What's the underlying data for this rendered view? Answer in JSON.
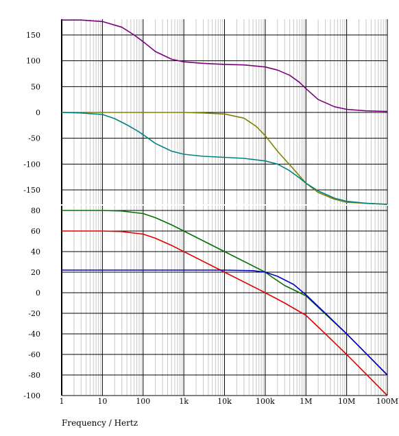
{
  "chart_data": [
    {
      "type": "line",
      "title": "",
      "xscale": "log",
      "xlim": [
        1,
        100000000
      ],
      "ylim": [
        -180,
        180
      ],
      "yticks": [
        150,
        100,
        50,
        0,
        -50,
        -100,
        -150
      ],
      "grid": true,
      "series": [
        {
          "color": "#7a007a",
          "x": [
            1,
            3,
            10,
            30,
            60,
            100,
            200,
            500,
            1000,
            3000,
            10000,
            30000,
            100000,
            200000,
            400000,
            700000,
            1000000,
            2000000,
            5000000,
            10000000,
            30000000,
            100000000
          ],
          "y": [
            179,
            179,
            176,
            165,
            150,
            137,
            118,
            103,
            98,
            95,
            93,
            92,
            88,
            82,
            72,
            58,
            46,
            25,
            11,
            6,
            3,
            2
          ]
        },
        {
          "color": "#808000",
          "x": [
            1,
            10,
            100,
            1000,
            3000,
            10000,
            30000,
            60000,
            100000,
            200000,
            500000,
            1000000,
            2000000,
            5000000,
            10000000,
            100000000
          ],
          "y": [
            0,
            0,
            0,
            0,
            -1,
            -3,
            -11,
            -27,
            -45,
            -75,
            -110,
            -137,
            -155,
            -168,
            -174,
            -178
          ]
        },
        {
          "color": "#008080",
          "x": [
            1,
            3,
            10,
            20,
            40,
            70,
            100,
            200,
            500,
            1000,
            3000,
            10000,
            30000,
            100000,
            200000,
            400000,
            700000,
            1000000,
            2000000,
            5000000,
            10000000,
            30000000,
            100000000
          ],
          "y": [
            0,
            -1,
            -4,
            -12,
            -24,
            -35,
            -43,
            -60,
            -75,
            -81,
            -85,
            -87,
            -89,
            -94,
            -100,
            -113,
            -127,
            -137,
            -152,
            -166,
            -172,
            -176,
            -178
          ]
        }
      ]
    },
    {
      "type": "line",
      "title": "",
      "xscale": "log",
      "xlim": [
        1,
        100000000
      ],
      "ylim": [
        -100,
        80
      ],
      "yticks": [
        80,
        60,
        40,
        20,
        0,
        -20,
        -40,
        -60,
        -80,
        -100
      ],
      "xticks": [
        "1",
        "10",
        "100",
        "1k",
        "10k",
        "100k",
        "1M",
        "10M",
        "100M"
      ],
      "xlabel": "Frequency / Hertz",
      "grid": true,
      "series": [
        {
          "color": "#007000",
          "x": [
            1,
            10,
            30,
            60,
            100,
            200,
            500,
            1000,
            10000,
            100000,
            150000,
            300000,
            1000000,
            10000000,
            100000000
          ],
          "y": [
            80,
            80,
            79.5,
            78,
            77,
            73,
            66,
            60,
            40,
            20,
            15,
            7,
            -3,
            -40,
            -80
          ]
        },
        {
          "color": "#e00000",
          "x": [
            1,
            10,
            30,
            60,
            100,
            200,
            500,
            1000,
            10000,
            100000,
            300000,
            1000000,
            3000000,
            10000000,
            100000000
          ],
          "y": [
            60,
            60,
            59.5,
            58,
            57,
            53,
            46,
            40,
            20,
            0,
            -10,
            -22,
            -40,
            -60,
            -100
          ]
        },
        {
          "color": "#0000c0",
          "x": [
            1,
            10,
            100,
            1000,
            10000,
            50000,
            100000,
            200000,
            500000,
            1000000,
            3000000,
            10000000,
            100000000
          ],
          "y": [
            22,
            22,
            22,
            22,
            22,
            21.5,
            20,
            16,
            8,
            -2,
            -20,
            -40,
            -80
          ]
        }
      ]
    }
  ]
}
